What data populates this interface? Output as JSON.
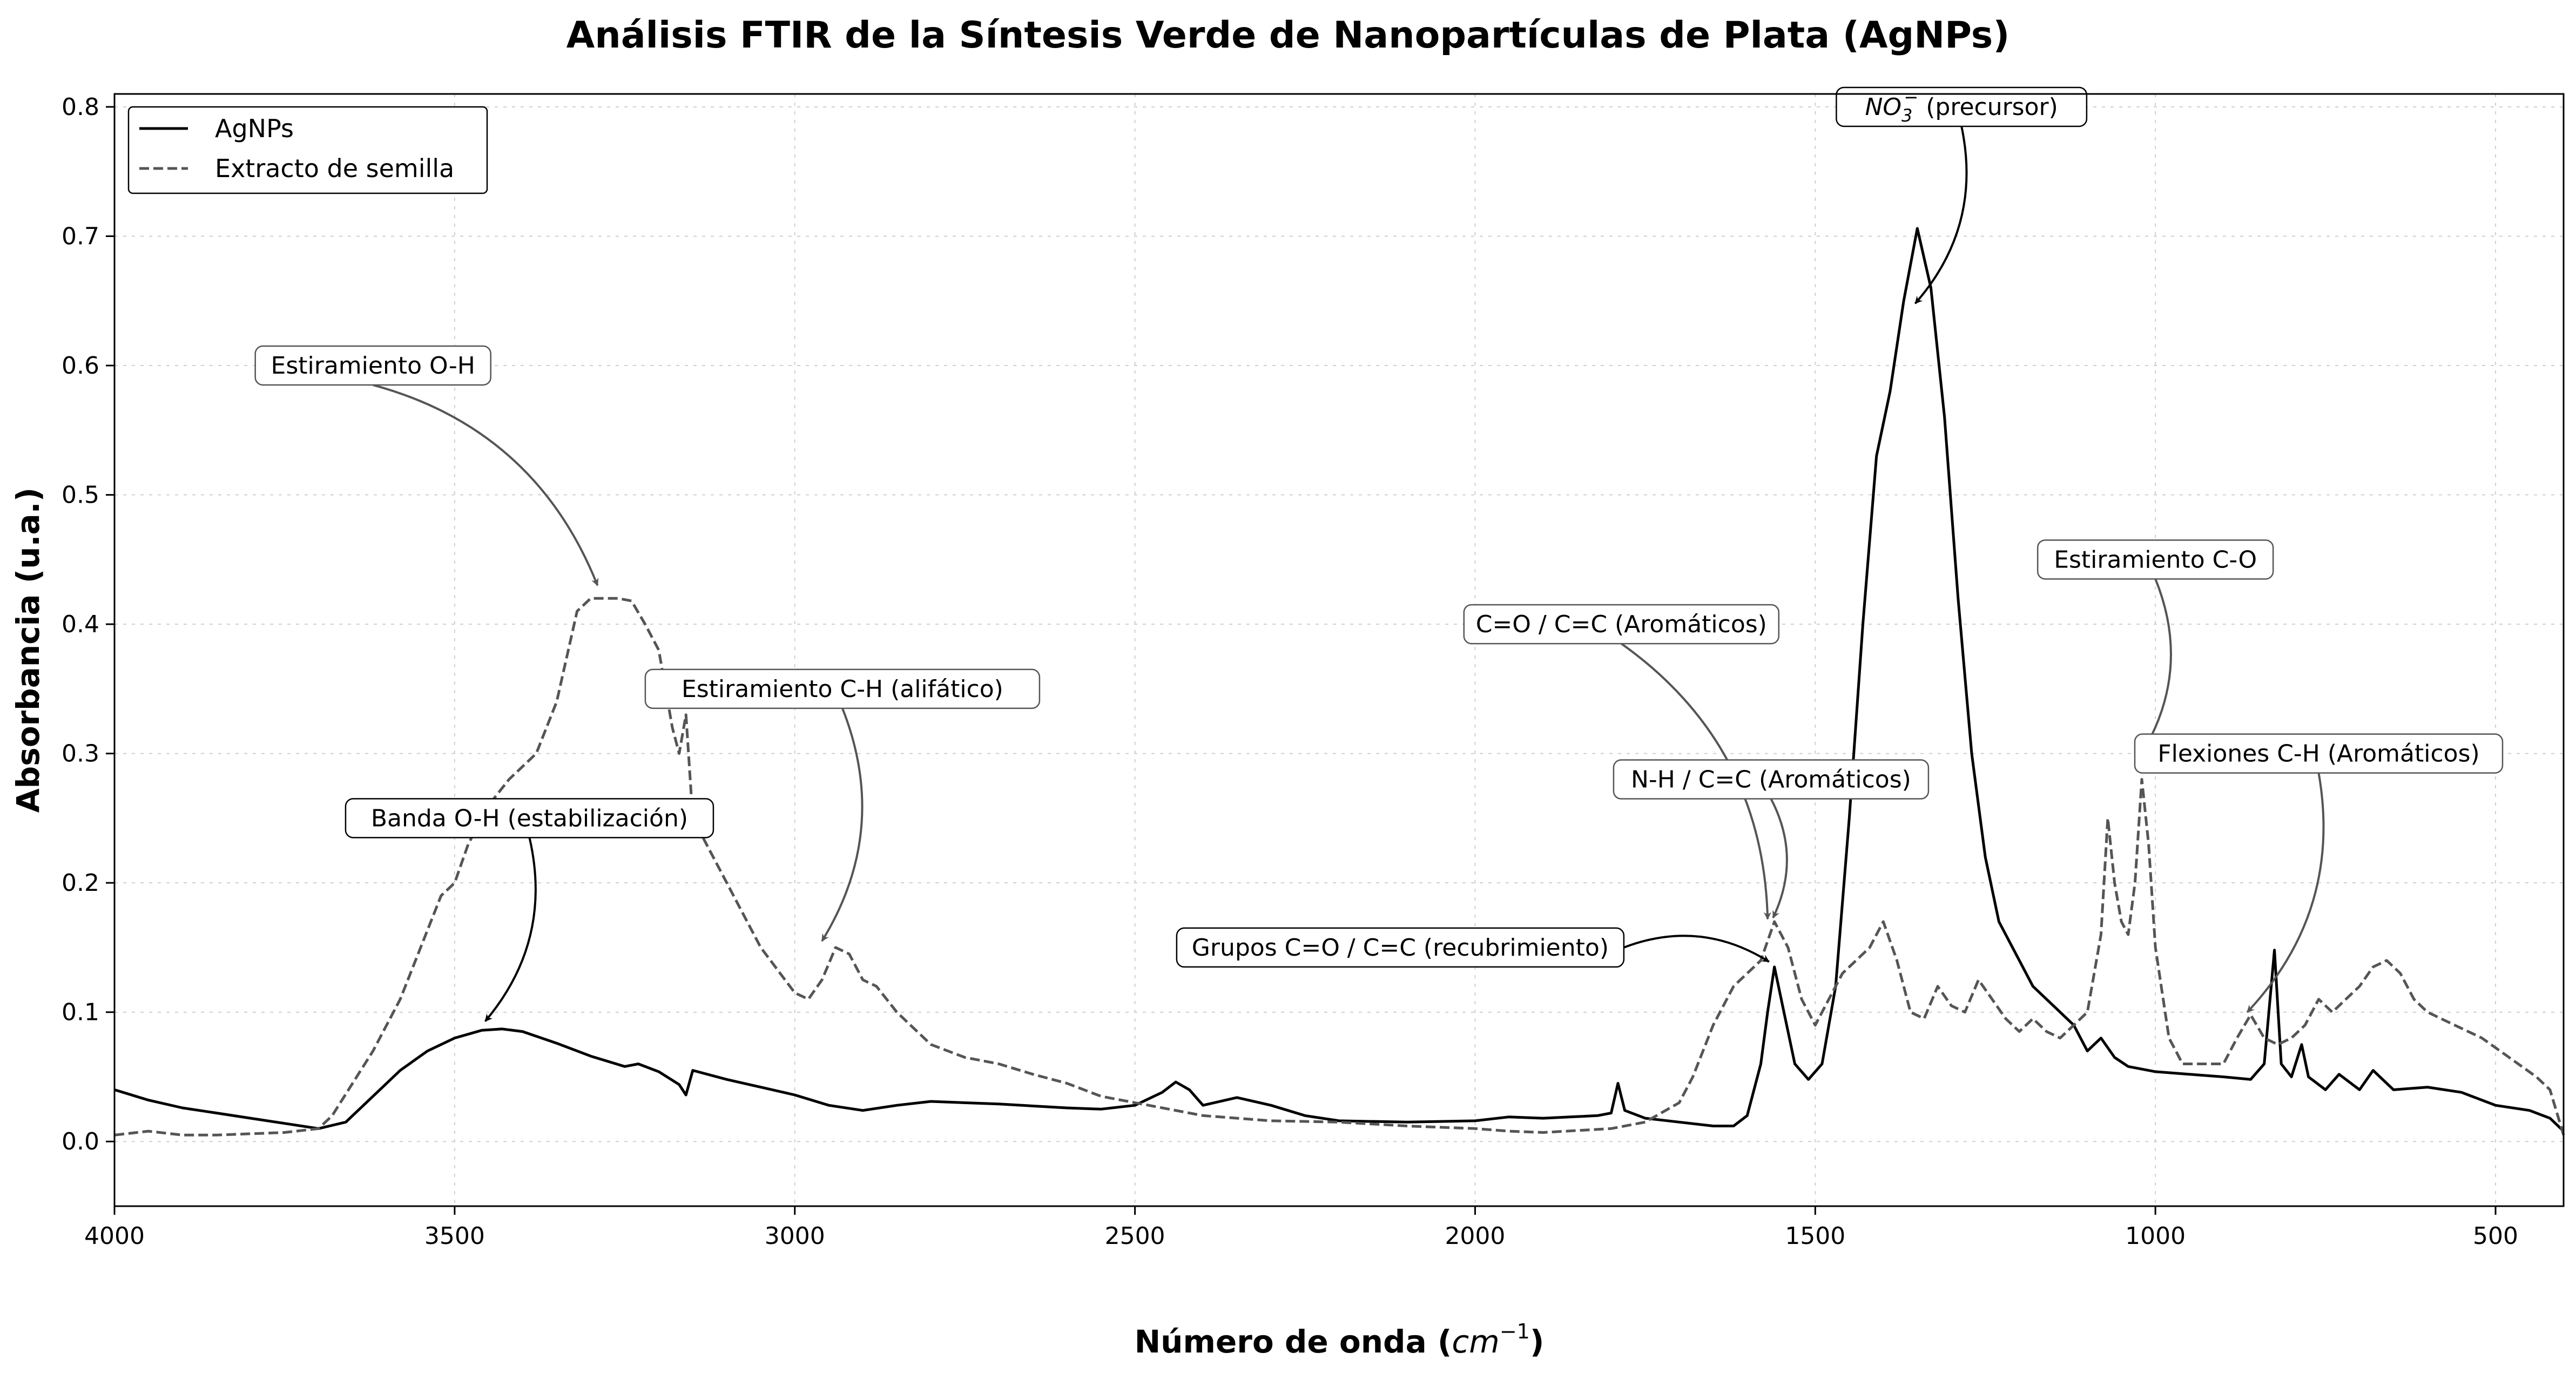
{
  "chart_data": {
    "type": "line",
    "title": "Análisis FTIR de la Síntesis Verde de Nanopartículas de Plata (AgNPs)",
    "xlabel": "Número de onda (",
    "xlabel_unit": "cm",
    "xlabel_sup": "−1",
    "xlabel_close": ")",
    "ylabel": "Absorbancia (u.a.)",
    "xlim": [
      4000,
      400
    ],
    "ylim": [
      -0.05,
      0.81
    ],
    "x_ticks": [
      4000,
      3500,
      3000,
      2500,
      2000,
      1500,
      1000,
      500
    ],
    "x_tick_labels": [
      "4000",
      "3500",
      "3000",
      "2500",
      "2000",
      "1500",
      "1000",
      "500"
    ],
    "y_ticks": [
      0.0,
      0.1,
      0.2,
      0.3,
      0.4,
      0.5,
      0.6,
      0.7,
      0.8
    ],
    "y_tick_labels": [
      "0.0",
      "0.1",
      "0.2",
      "0.3",
      "0.4",
      "0.5",
      "0.6",
      "0.7",
      "0.8"
    ],
    "grid": true,
    "legend_position": "top-left",
    "series": [
      {
        "name": "AgNPs",
        "color": "#000000",
        "style": "solid",
        "points": [
          [
            4000,
            0.04
          ],
          [
            3950,
            0.032
          ],
          [
            3900,
            0.026
          ],
          [
            3850,
            0.022
          ],
          [
            3800,
            0.018
          ],
          [
            3750,
            0.014
          ],
          [
            3700,
            0.01
          ],
          [
            3660,
            0.015
          ],
          [
            3620,
            0.035
          ],
          [
            3580,
            0.055
          ],
          [
            3540,
            0.07
          ],
          [
            3500,
            0.08
          ],
          [
            3460,
            0.086
          ],
          [
            3430,
            0.087
          ],
          [
            3400,
            0.085
          ],
          [
            3350,
            0.076
          ],
          [
            3300,
            0.066
          ],
          [
            3250,
            0.058
          ],
          [
            3230,
            0.06
          ],
          [
            3200,
            0.054
          ],
          [
            3170,
            0.044
          ],
          [
            3160,
            0.036
          ],
          [
            3150,
            0.055
          ],
          [
            3100,
            0.048
          ],
          [
            3050,
            0.042
          ],
          [
            3000,
            0.036
          ],
          [
            2950,
            0.028
          ],
          [
            2900,
            0.024
          ],
          [
            2850,
            0.028
          ],
          [
            2800,
            0.031
          ],
          [
            2700,
            0.029
          ],
          [
            2600,
            0.026
          ],
          [
            2550,
            0.025
          ],
          [
            2500,
            0.028
          ],
          [
            2460,
            0.038
          ],
          [
            2440,
            0.046
          ],
          [
            2420,
            0.04
          ],
          [
            2400,
            0.028
          ],
          [
            2350,
            0.034
          ],
          [
            2300,
            0.028
          ],
          [
            2250,
            0.02
          ],
          [
            2200,
            0.016
          ],
          [
            2100,
            0.015
          ],
          [
            2000,
            0.016
          ],
          [
            1950,
            0.019
          ],
          [
            1900,
            0.018
          ],
          [
            1820,
            0.02
          ],
          [
            1800,
            0.022
          ],
          [
            1790,
            0.045
          ],
          [
            1780,
            0.024
          ],
          [
            1750,
            0.018
          ],
          [
            1700,
            0.015
          ],
          [
            1650,
            0.012
          ],
          [
            1620,
            0.012
          ],
          [
            1600,
            0.02
          ],
          [
            1580,
            0.06
          ],
          [
            1570,
            0.1
          ],
          [
            1560,
            0.135
          ],
          [
            1550,
            0.11
          ],
          [
            1530,
            0.06
          ],
          [
            1510,
            0.048
          ],
          [
            1490,
            0.06
          ],
          [
            1470,
            0.12
          ],
          [
            1450,
            0.25
          ],
          [
            1430,
            0.4
          ],
          [
            1410,
            0.53
          ],
          [
            1390,
            0.58
          ],
          [
            1370,
            0.65
          ],
          [
            1350,
            0.706
          ],
          [
            1330,
            0.66
          ],
          [
            1310,
            0.56
          ],
          [
            1290,
            0.42
          ],
          [
            1270,
            0.3
          ],
          [
            1250,
            0.22
          ],
          [
            1230,
            0.17
          ],
          [
            1200,
            0.14
          ],
          [
            1180,
            0.12
          ],
          [
            1150,
            0.105
          ],
          [
            1120,
            0.09
          ],
          [
            1100,
            0.07
          ],
          [
            1080,
            0.08
          ],
          [
            1060,
            0.065
          ],
          [
            1040,
            0.058
          ],
          [
            1000,
            0.054
          ],
          [
            950,
            0.052
          ],
          [
            900,
            0.05
          ],
          [
            860,
            0.048
          ],
          [
            840,
            0.06
          ],
          [
            825,
            0.148
          ],
          [
            815,
            0.06
          ],
          [
            800,
            0.05
          ],
          [
            785,
            0.075
          ],
          [
            775,
            0.05
          ],
          [
            750,
            0.04
          ],
          [
            730,
            0.052
          ],
          [
            700,
            0.04
          ],
          [
            680,
            0.055
          ],
          [
            650,
            0.04
          ],
          [
            600,
            0.042
          ],
          [
            550,
            0.038
          ],
          [
            500,
            0.028
          ],
          [
            450,
            0.024
          ],
          [
            420,
            0.018
          ],
          [
            400,
            0.008
          ]
        ]
      },
      {
        "name": "Extracto de semilla",
        "color": "#555555",
        "style": "dashed",
        "points": [
          [
            4000,
            0.005
          ],
          [
            3950,
            0.008
          ],
          [
            3900,
            0.005
          ],
          [
            3850,
            0.005
          ],
          [
            3800,
            0.006
          ],
          [
            3750,
            0.007
          ],
          [
            3700,
            0.01
          ],
          [
            3680,
            0.02
          ],
          [
            3650,
            0.045
          ],
          [
            3620,
            0.07
          ],
          [
            3580,
            0.11
          ],
          [
            3550,
            0.15
          ],
          [
            3520,
            0.19
          ],
          [
            3500,
            0.2
          ],
          [
            3480,
            0.23
          ],
          [
            3450,
            0.26
          ],
          [
            3420,
            0.28
          ],
          [
            3380,
            0.3
          ],
          [
            3350,
            0.34
          ],
          [
            3320,
            0.41
          ],
          [
            3300,
            0.42
          ],
          [
            3280,
            0.42
          ],
          [
            3260,
            0.42
          ],
          [
            3240,
            0.418
          ],
          [
            3220,
            0.4
          ],
          [
            3200,
            0.38
          ],
          [
            3180,
            0.32
          ],
          [
            3170,
            0.3
          ],
          [
            3160,
            0.33
          ],
          [
            3150,
            0.25
          ],
          [
            3100,
            0.2
          ],
          [
            3050,
            0.15
          ],
          [
            3000,
            0.115
          ],
          [
            2980,
            0.11
          ],
          [
            2960,
            0.125
          ],
          [
            2940,
            0.15
          ],
          [
            2920,
            0.145
          ],
          [
            2900,
            0.125
          ],
          [
            2880,
            0.12
          ],
          [
            2850,
            0.1
          ],
          [
            2800,
            0.075
          ],
          [
            2750,
            0.065
          ],
          [
            2700,
            0.06
          ],
          [
            2650,
            0.052
          ],
          [
            2600,
            0.045
          ],
          [
            2550,
            0.035
          ],
          [
            2500,
            0.03
          ],
          [
            2450,
            0.025
          ],
          [
            2400,
            0.02
          ],
          [
            2350,
            0.018
          ],
          [
            2300,
            0.016
          ],
          [
            2200,
            0.015
          ],
          [
            2100,
            0.012
          ],
          [
            2000,
            0.01
          ],
          [
            1950,
            0.008
          ],
          [
            1900,
            0.007
          ],
          [
            1800,
            0.01
          ],
          [
            1750,
            0.015
          ],
          [
            1700,
            0.03
          ],
          [
            1680,
            0.05
          ],
          [
            1650,
            0.09
          ],
          [
            1620,
            0.12
          ],
          [
            1600,
            0.13
          ],
          [
            1580,
            0.14
          ],
          [
            1560,
            0.17
          ],
          [
            1540,
            0.15
          ],
          [
            1520,
            0.11
          ],
          [
            1500,
            0.09
          ],
          [
            1480,
            0.11
          ],
          [
            1460,
            0.13
          ],
          [
            1440,
            0.14
          ],
          [
            1420,
            0.15
          ],
          [
            1400,
            0.17
          ],
          [
            1380,
            0.14
          ],
          [
            1360,
            0.1
          ],
          [
            1340,
            0.095
          ],
          [
            1320,
            0.12
          ],
          [
            1300,
            0.105
          ],
          [
            1280,
            0.1
          ],
          [
            1260,
            0.125
          ],
          [
            1240,
            0.11
          ],
          [
            1220,
            0.095
          ],
          [
            1200,
            0.085
          ],
          [
            1180,
            0.095
          ],
          [
            1160,
            0.085
          ],
          [
            1140,
            0.08
          ],
          [
            1120,
            0.09
          ],
          [
            1100,
            0.1
          ],
          [
            1080,
            0.16
          ],
          [
            1070,
            0.25
          ],
          [
            1060,
            0.2
          ],
          [
            1050,
            0.17
          ],
          [
            1040,
            0.16
          ],
          [
            1030,
            0.2
          ],
          [
            1020,
            0.28
          ],
          [
            1010,
            0.23
          ],
          [
            1000,
            0.15
          ],
          [
            980,
            0.08
          ],
          [
            960,
            0.06
          ],
          [
            940,
            0.06
          ],
          [
            900,
            0.06
          ],
          [
            880,
            0.08
          ],
          [
            860,
            0.098
          ],
          [
            840,
            0.08
          ],
          [
            820,
            0.075
          ],
          [
            800,
            0.08
          ],
          [
            780,
            0.09
          ],
          [
            760,
            0.11
          ],
          [
            740,
            0.1
          ],
          [
            720,
            0.11
          ],
          [
            700,
            0.12
          ],
          [
            680,
            0.135
          ],
          [
            660,
            0.14
          ],
          [
            640,
            0.13
          ],
          [
            620,
            0.11
          ],
          [
            600,
            0.1
          ],
          [
            560,
            0.09
          ],
          [
            520,
            0.08
          ],
          [
            480,
            0.065
          ],
          [
            440,
            0.05
          ],
          [
            420,
            0.04
          ],
          [
            400,
            0.005
          ]
        ]
      }
    ],
    "annotations": [
      {
        "id": "oh-stretch",
        "text": "Estiramiento O-H",
        "label_at": [
          3620,
          0.6
        ],
        "arrow_to": [
          3290,
          0.43
        ],
        "color": "#555555"
      },
      {
        "id": "ch-aliphatic",
        "text": "Estiramiento C-H (alifático)",
        "label_at": [
          2930,
          0.35
        ],
        "arrow_to": [
          2960,
          0.155
        ],
        "color": "#555555"
      },
      {
        "id": "oh-band",
        "text": "Banda O-H (estabilización)",
        "label_at": [
          3390,
          0.25
        ],
        "arrow_to": [
          3455,
          0.093
        ],
        "color": "#000000"
      },
      {
        "id": "co-cc-aromatic",
        "text": "C=O / C=C (Aromáticos)",
        "label_at": [
          1785,
          0.4
        ],
        "arrow_to": [
          1570,
          0.172
        ],
        "color": "#555555"
      },
      {
        "id": "nh-cc-aromatic",
        "text": "N-H / C=C (Aromáticos)",
        "label_at": [
          1565,
          0.28
        ],
        "arrow_to": [
          1562,
          0.173
        ],
        "color": "#555555"
      },
      {
        "id": "co-cc-coating",
        "text": "Grupos C=O / C=C (recubrimiento)",
        "label_at": [
          2110,
          0.15
        ],
        "arrow_to": [
          1568,
          0.139
        ],
        "color": "#000000"
      },
      {
        "id": "no3-precursor",
        "text": "(precursor)",
        "math_prefix": "NO",
        "math_sub": "3",
        "math_sup": "−",
        "label_at": [
          1285,
          0.8
        ],
        "arrow_to": [
          1353,
          0.648
        ],
        "color": "#000000"
      },
      {
        "id": "co-stretch",
        "text": "Estiramiento C-O",
        "label_at": [
          1000,
          0.45
        ],
        "arrow_to": [
          1020,
          0.3
        ],
        "color": "#555555"
      },
      {
        "id": "ch-bending-aromatic",
        "text": "Flexiones C-H (Aromáticos)",
        "label_at": [
          760,
          0.3
        ],
        "arrow_to": [
          865,
          0.1
        ],
        "color": "#555555"
      }
    ]
  }
}
